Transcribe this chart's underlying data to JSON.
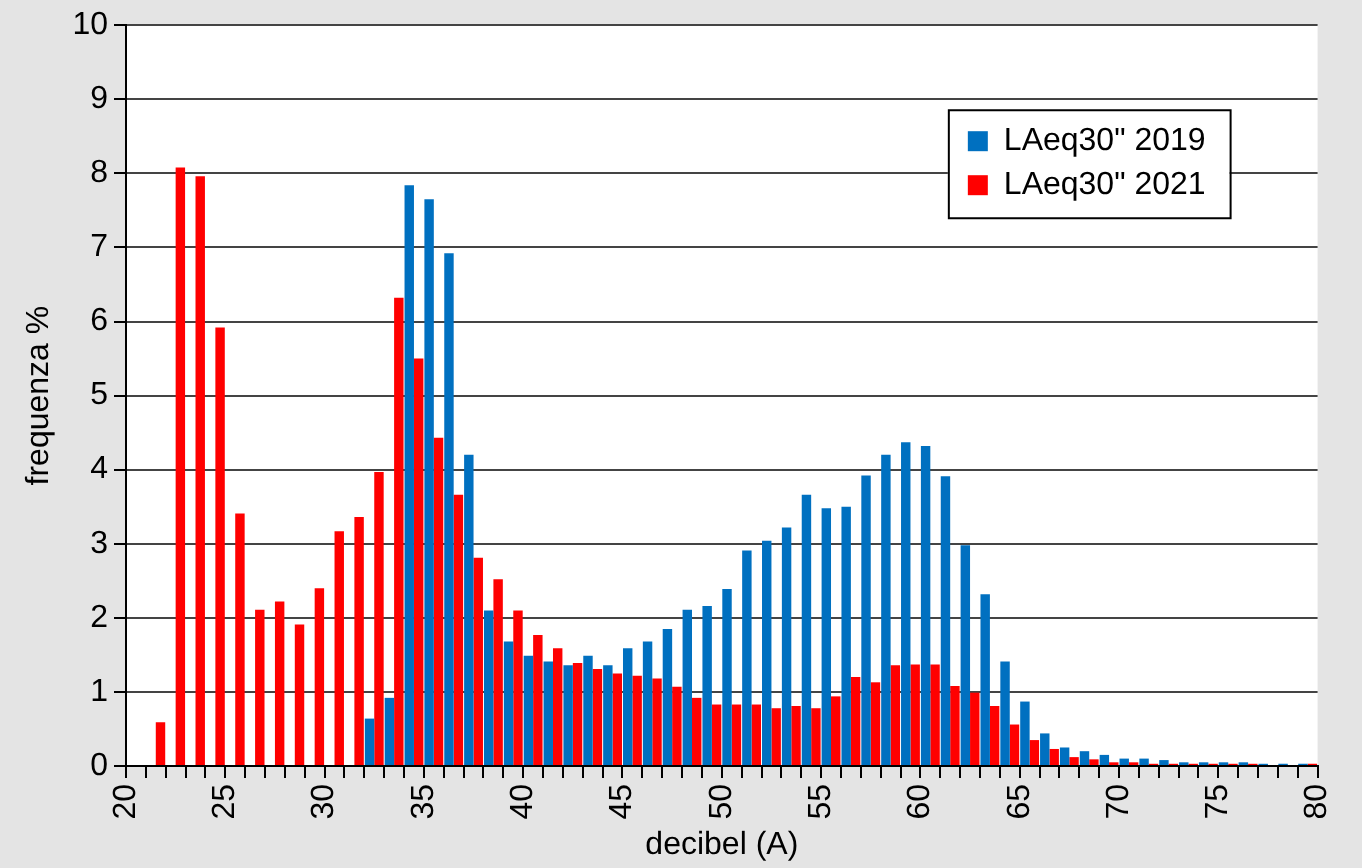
{
  "chart_data": {
    "type": "bar",
    "xlabel": "decibel (A)",
    "ylabel": "frequenza %",
    "x": [
      21.5,
      22.5,
      23.5,
      24.5,
      25.5,
      26.5,
      27.5,
      28.5,
      29.5,
      30.5,
      31.5,
      32.5,
      33.5,
      34.5,
      35.5,
      36.5,
      37.5,
      38.5,
      39.5,
      40.5,
      41.5,
      42.5,
      43.5,
      44.5,
      45.5,
      46.5,
      47.5,
      48.5,
      49.5,
      50.5,
      51.5,
      52.5,
      53.5,
      54.5,
      55.5,
      56.5,
      57.5,
      58.5,
      59.5,
      60.5,
      61.5,
      62.5,
      63.5,
      64.5,
      65.5,
      66.5,
      67.5,
      68.5,
      69.5,
      70.5,
      71.5,
      72.5,
      73.5,
      74.5,
      75.5,
      76.5,
      77.5,
      78.5,
      79.5
    ],
    "series": [
      {
        "name": "LAeq30\" 2019",
        "color": "#0070c0",
        "values": [
          null,
          null,
          null,
          null,
          null,
          null,
          null,
          null,
          null,
          null,
          null,
          0.64,
          0.92,
          7.84,
          7.65,
          6.92,
          4.2,
          2.1,
          1.68,
          1.49,
          1.41,
          1.36,
          1.49,
          1.36,
          1.59,
          1.68,
          1.85,
          2.11,
          2.16,
          2.39,
          2.91,
          3.04,
          3.22,
          3.66,
          3.48,
          3.5,
          3.92,
          4.2,
          4.37,
          4.32,
          3.91,
          2.98,
          2.32,
          1.41,
          0.87,
          0.44,
          0.25,
          0.2,
          0.15,
          0.1,
          0.1,
          0.08,
          0.05,
          0.05,
          0.05,
          0.05,
          0.03,
          0.03,
          0.03
        ]
      },
      {
        "name": "LAeq30\" 2021",
        "color": "#ff0000",
        "values": [
          0.59,
          8.08,
          7.96,
          5.92,
          3.41,
          2.11,
          2.22,
          1.91,
          2.4,
          3.17,
          3.36,
          3.97,
          6.32,
          5.5,
          4.43,
          3.66,
          2.81,
          2.52,
          2.1,
          1.77,
          1.59,
          1.39,
          1.31,
          1.25,
          1.22,
          1.18,
          1.07,
          0.92,
          0.83,
          0.83,
          0.83,
          0.78,
          0.81,
          0.78,
          0.94,
          1.2,
          1.13,
          1.36,
          1.37,
          1.37,
          1.08,
          0.99,
          0.81,
          0.56,
          0.35,
          0.23,
          0.12,
          0.09,
          0.05,
          0.05,
          0.03,
          0.03,
          0.03,
          0.03,
          0.03,
          0.03,
          null,
          null,
          0.03
        ]
      }
    ],
    "xlim": [
      20,
      80
    ],
    "xticks": [
      20,
      {
        "value": 21,
        "label": null
      },
      {
        "value": 22,
        "label": null
      },
      {
        "value": 23,
        "label": null
      },
      {
        "value": 24,
        "label": null
      },
      25,
      {
        "value": 26,
        "label": null
      },
      {
        "value": 27,
        "label": null
      },
      {
        "value": 28,
        "label": null
      },
      {
        "value": 29,
        "label": null
      },
      30,
      {
        "value": 31,
        "label": null
      },
      {
        "value": 32,
        "label": null
      },
      {
        "value": 33,
        "label": null
      },
      {
        "value": 34,
        "label": null
      },
      35,
      {
        "value": 36,
        "label": null
      },
      {
        "value": 37,
        "label": null
      },
      {
        "value": 38,
        "label": null
      },
      {
        "value": 39,
        "label": null
      },
      40,
      {
        "value": 41,
        "label": null
      },
      {
        "value": 42,
        "label": null
      },
      {
        "value": 43,
        "label": null
      },
      {
        "value": 44,
        "label": null
      },
      45,
      {
        "value": 46,
        "label": null
      },
      {
        "value": 47,
        "label": null
      },
      {
        "value": 48,
        "label": null
      },
      {
        "value": 49,
        "label": null
      },
      50,
      {
        "value": 51,
        "label": null
      },
      {
        "value": 52,
        "label": null
      },
      {
        "value": 53,
        "label": null
      },
      {
        "value": 54,
        "label": null
      },
      55,
      {
        "value": 56,
        "label": null
      },
      {
        "value": 57,
        "label": null
      },
      {
        "value": 58,
        "label": null
      },
      {
        "value": 59,
        "label": null
      },
      60,
      {
        "value": 61,
        "label": null
      },
      {
        "value": 62,
        "label": null
      },
      {
        "value": 63,
        "label": null
      },
      {
        "value": 64,
        "label": null
      },
      65,
      {
        "value": 66,
        "label": null
      },
      {
        "value": 67,
        "label": null
      },
      {
        "value": 68,
        "label": null
      },
      {
        "value": 69,
        "label": null
      },
      70,
      {
        "value": 71,
        "label": null
      },
      {
        "value": 72,
        "label": null
      },
      {
        "value": 73,
        "label": null
      },
      {
        "value": 74,
        "label": null
      },
      75,
      {
        "value": 76,
        "label": null
      },
      {
        "value": 77,
        "label": null
      },
      {
        "value": 78,
        "label": null
      },
      {
        "value": 79,
        "label": null
      },
      80
    ],
    "ylim": [
      0,
      10
    ],
    "yticks": [
      0,
      1,
      2,
      3,
      4,
      5,
      6,
      7,
      8,
      9,
      10
    ],
    "grid": "y",
    "legend": "top right"
  }
}
